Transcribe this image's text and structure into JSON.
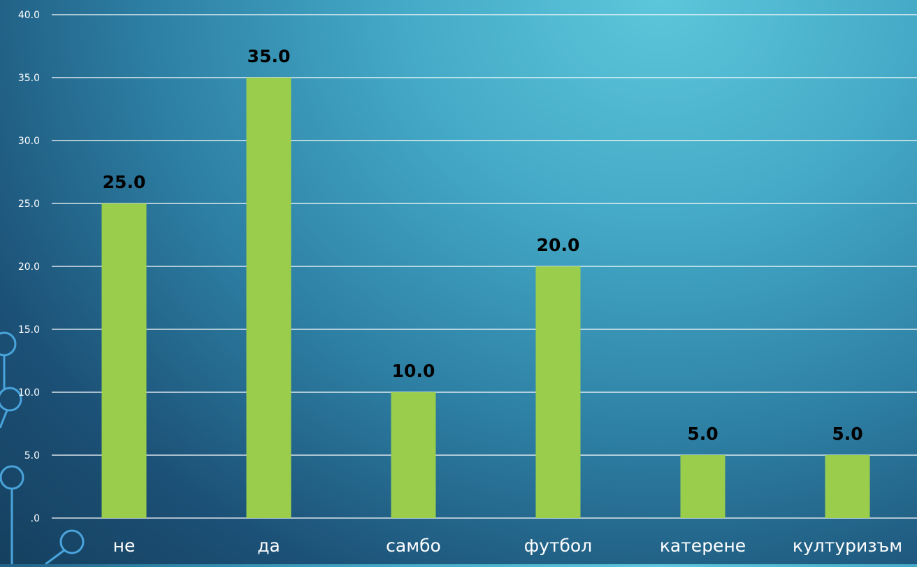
{
  "chart_data": {
    "type": "bar",
    "categories": [
      "не",
      "да",
      "самбо",
      "футбол",
      "катерене",
      "културизъм"
    ],
    "values": [
      25.0,
      35.0,
      10.0,
      20.0,
      5.0,
      5.0
    ],
    "value_labels": [
      "25.0",
      "35.0",
      "10.0",
      "20.0",
      "5.0",
      "5.0"
    ],
    "y_ticks": [
      ".0",
      "5.0",
      "10.0",
      "15.0",
      "20.0",
      "25.0",
      "30.0",
      "35.0",
      "40.0"
    ],
    "ylim": [
      0,
      40
    ],
    "grid": true,
    "legend": "none",
    "colors": {
      "bar": "#9bcd4d",
      "grid": "#ffffff",
      "tick_text": "#ffffff",
      "data_label": "#000000",
      "decoration": "#4aa4dc"
    }
  }
}
